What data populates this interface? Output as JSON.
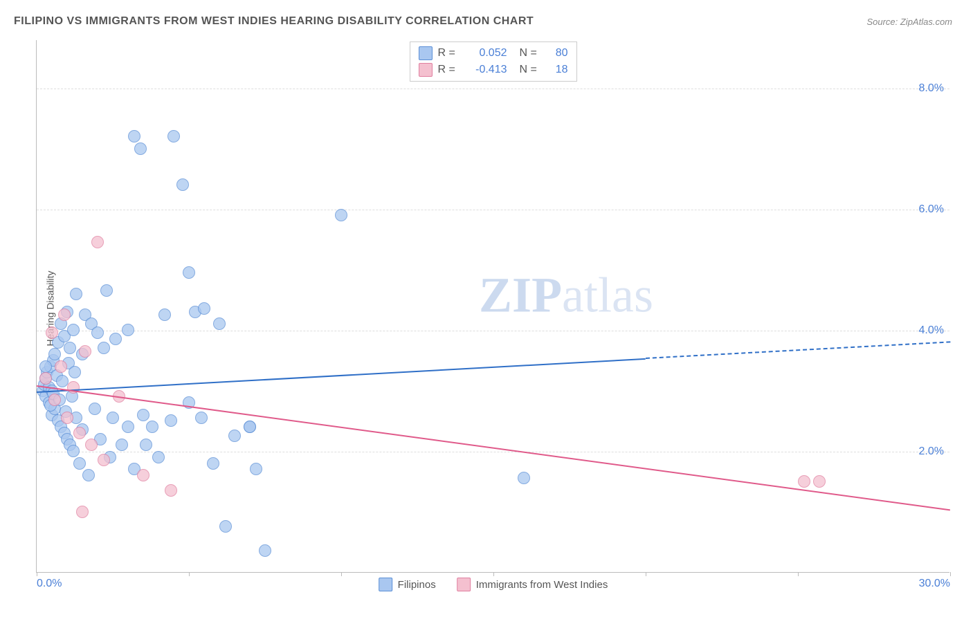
{
  "title": "FILIPINO VS IMMIGRANTS FROM WEST INDIES HEARING DISABILITY CORRELATION CHART",
  "source": "Source: ZipAtlas.com",
  "ylabel": "Hearing Disability",
  "watermark_zip": "ZIP",
  "watermark_atlas": "atlas",
  "chart": {
    "type": "scatter",
    "background_color": "#ffffff",
    "grid_color": "#dddddd",
    "axis_color": "#bbbbbb",
    "tick_label_color": "#4a7fd6",
    "text_color": "#555555",
    "xlim": [
      0,
      30
    ],
    "ylim": [
      0,
      8.8
    ],
    "x_ticks": [
      0,
      5,
      10,
      15,
      20,
      25,
      30
    ],
    "x_tick_labels": {
      "0": "0.0%",
      "30": "30.0%"
    },
    "y_ticks": [
      2,
      4,
      6,
      8
    ],
    "y_tick_labels": {
      "2": "2.0%",
      "4": "4.0%",
      "6": "6.0%",
      "8": "8.0%"
    },
    "marker_radius": 9,
    "marker_stroke_width": 1.2,
    "marker_fill_opacity": 0.35,
    "series": {
      "filipinos": {
        "label": "Filipinos",
        "fill": "#a9c7f0",
        "stroke": "#5b8fd6",
        "r_value": "0.052",
        "n_value": "80",
        "trend": {
          "x0": 0,
          "y0": 3.0,
          "x1": 20,
          "y1": 3.55,
          "x1_dash": 30,
          "y1_dash": 3.82,
          "color": "#2f6fc7",
          "width": 2
        },
        "points": [
          [
            0.2,
            3.0
          ],
          [
            0.25,
            3.1
          ],
          [
            0.3,
            2.9
          ],
          [
            0.3,
            3.2
          ],
          [
            0.35,
            3.3
          ],
          [
            0.4,
            2.8
          ],
          [
            0.4,
            3.05
          ],
          [
            0.45,
            3.4
          ],
          [
            0.5,
            2.6
          ],
          [
            0.5,
            3.0
          ],
          [
            0.55,
            3.5
          ],
          [
            0.6,
            2.7
          ],
          [
            0.6,
            3.6
          ],
          [
            0.7,
            2.5
          ],
          [
            0.7,
            3.8
          ],
          [
            0.8,
            2.4
          ],
          [
            0.8,
            4.1
          ],
          [
            0.9,
            2.3
          ],
          [
            0.9,
            3.9
          ],
          [
            1.0,
            2.2
          ],
          [
            1.0,
            4.3
          ],
          [
            1.1,
            2.1
          ],
          [
            1.1,
            3.7
          ],
          [
            1.2,
            2.0
          ],
          [
            1.2,
            4.0
          ],
          [
            1.3,
            2.55
          ],
          [
            1.3,
            4.6
          ],
          [
            1.4,
            1.8
          ],
          [
            1.5,
            3.6
          ],
          [
            1.5,
            2.35
          ],
          [
            1.6,
            4.25
          ],
          [
            1.7,
            1.6
          ],
          [
            1.8,
            4.1
          ],
          [
            1.9,
            2.7
          ],
          [
            2.0,
            3.95
          ],
          [
            2.1,
            2.2
          ],
          [
            2.2,
            3.7
          ],
          [
            2.3,
            4.65
          ],
          [
            2.4,
            1.9
          ],
          [
            2.5,
            2.55
          ],
          [
            2.6,
            3.85
          ],
          [
            2.8,
            2.1
          ],
          [
            3.0,
            2.4
          ],
          [
            3.0,
            4.0
          ],
          [
            3.2,
            1.7
          ],
          [
            3.2,
            7.2
          ],
          [
            3.4,
            7.0
          ],
          [
            3.5,
            2.6
          ],
          [
            3.6,
            2.1
          ],
          [
            3.8,
            2.4
          ],
          [
            4.0,
            1.9
          ],
          [
            4.2,
            4.25
          ],
          [
            4.4,
            2.5
          ],
          [
            4.5,
            7.2
          ],
          [
            4.8,
            6.4
          ],
          [
            5.0,
            2.8
          ],
          [
            5.0,
            4.95
          ],
          [
            5.2,
            4.3
          ],
          [
            5.4,
            2.55
          ],
          [
            5.5,
            4.35
          ],
          [
            5.8,
            1.8
          ],
          [
            6.0,
            4.1
          ],
          [
            6.2,
            0.75
          ],
          [
            6.5,
            2.25
          ],
          [
            7.0,
            2.4
          ],
          [
            7.0,
            2.4
          ],
          [
            7.2,
            1.7
          ],
          [
            7.5,
            0.35
          ],
          [
            10.0,
            5.9
          ],
          [
            16.0,
            1.55
          ],
          [
            0.3,
            3.4
          ],
          [
            0.45,
            2.75
          ],
          [
            0.55,
            2.95
          ],
          [
            0.65,
            3.25
          ],
          [
            0.75,
            2.85
          ],
          [
            0.85,
            3.15
          ],
          [
            0.95,
            2.65
          ],
          [
            1.05,
            3.45
          ],
          [
            1.15,
            2.9
          ],
          [
            1.25,
            3.3
          ]
        ]
      },
      "west_indies": {
        "label": "Immigrants from West Indies",
        "fill": "#f4c0cf",
        "stroke": "#e07fa0",
        "r_value": "-0.413",
        "n_value": "18",
        "trend": {
          "x0": 0,
          "y0": 3.1,
          "x1": 30,
          "y1": 1.05,
          "color": "#e05a8a",
          "width": 2
        },
        "points": [
          [
            0.3,
            3.2
          ],
          [
            0.5,
            3.95
          ],
          [
            0.6,
            2.85
          ],
          [
            0.8,
            3.4
          ],
          [
            1.0,
            2.55
          ],
          [
            1.2,
            3.05
          ],
          [
            1.4,
            2.3
          ],
          [
            1.6,
            3.65
          ],
          [
            1.8,
            2.1
          ],
          [
            2.0,
            5.45
          ],
          [
            2.2,
            1.85
          ],
          [
            2.7,
            2.9
          ],
          [
            3.5,
            1.6
          ],
          [
            4.4,
            1.35
          ],
          [
            1.5,
            1.0
          ],
          [
            0.9,
            4.25
          ],
          [
            25.2,
            1.5
          ],
          [
            25.7,
            1.5
          ]
        ]
      }
    },
    "bottom_legend": [
      {
        "key": "filipinos"
      },
      {
        "key": "west_indies"
      }
    ],
    "stat_legend": [
      {
        "key": "filipinos"
      },
      {
        "key": "west_indies"
      }
    ]
  }
}
